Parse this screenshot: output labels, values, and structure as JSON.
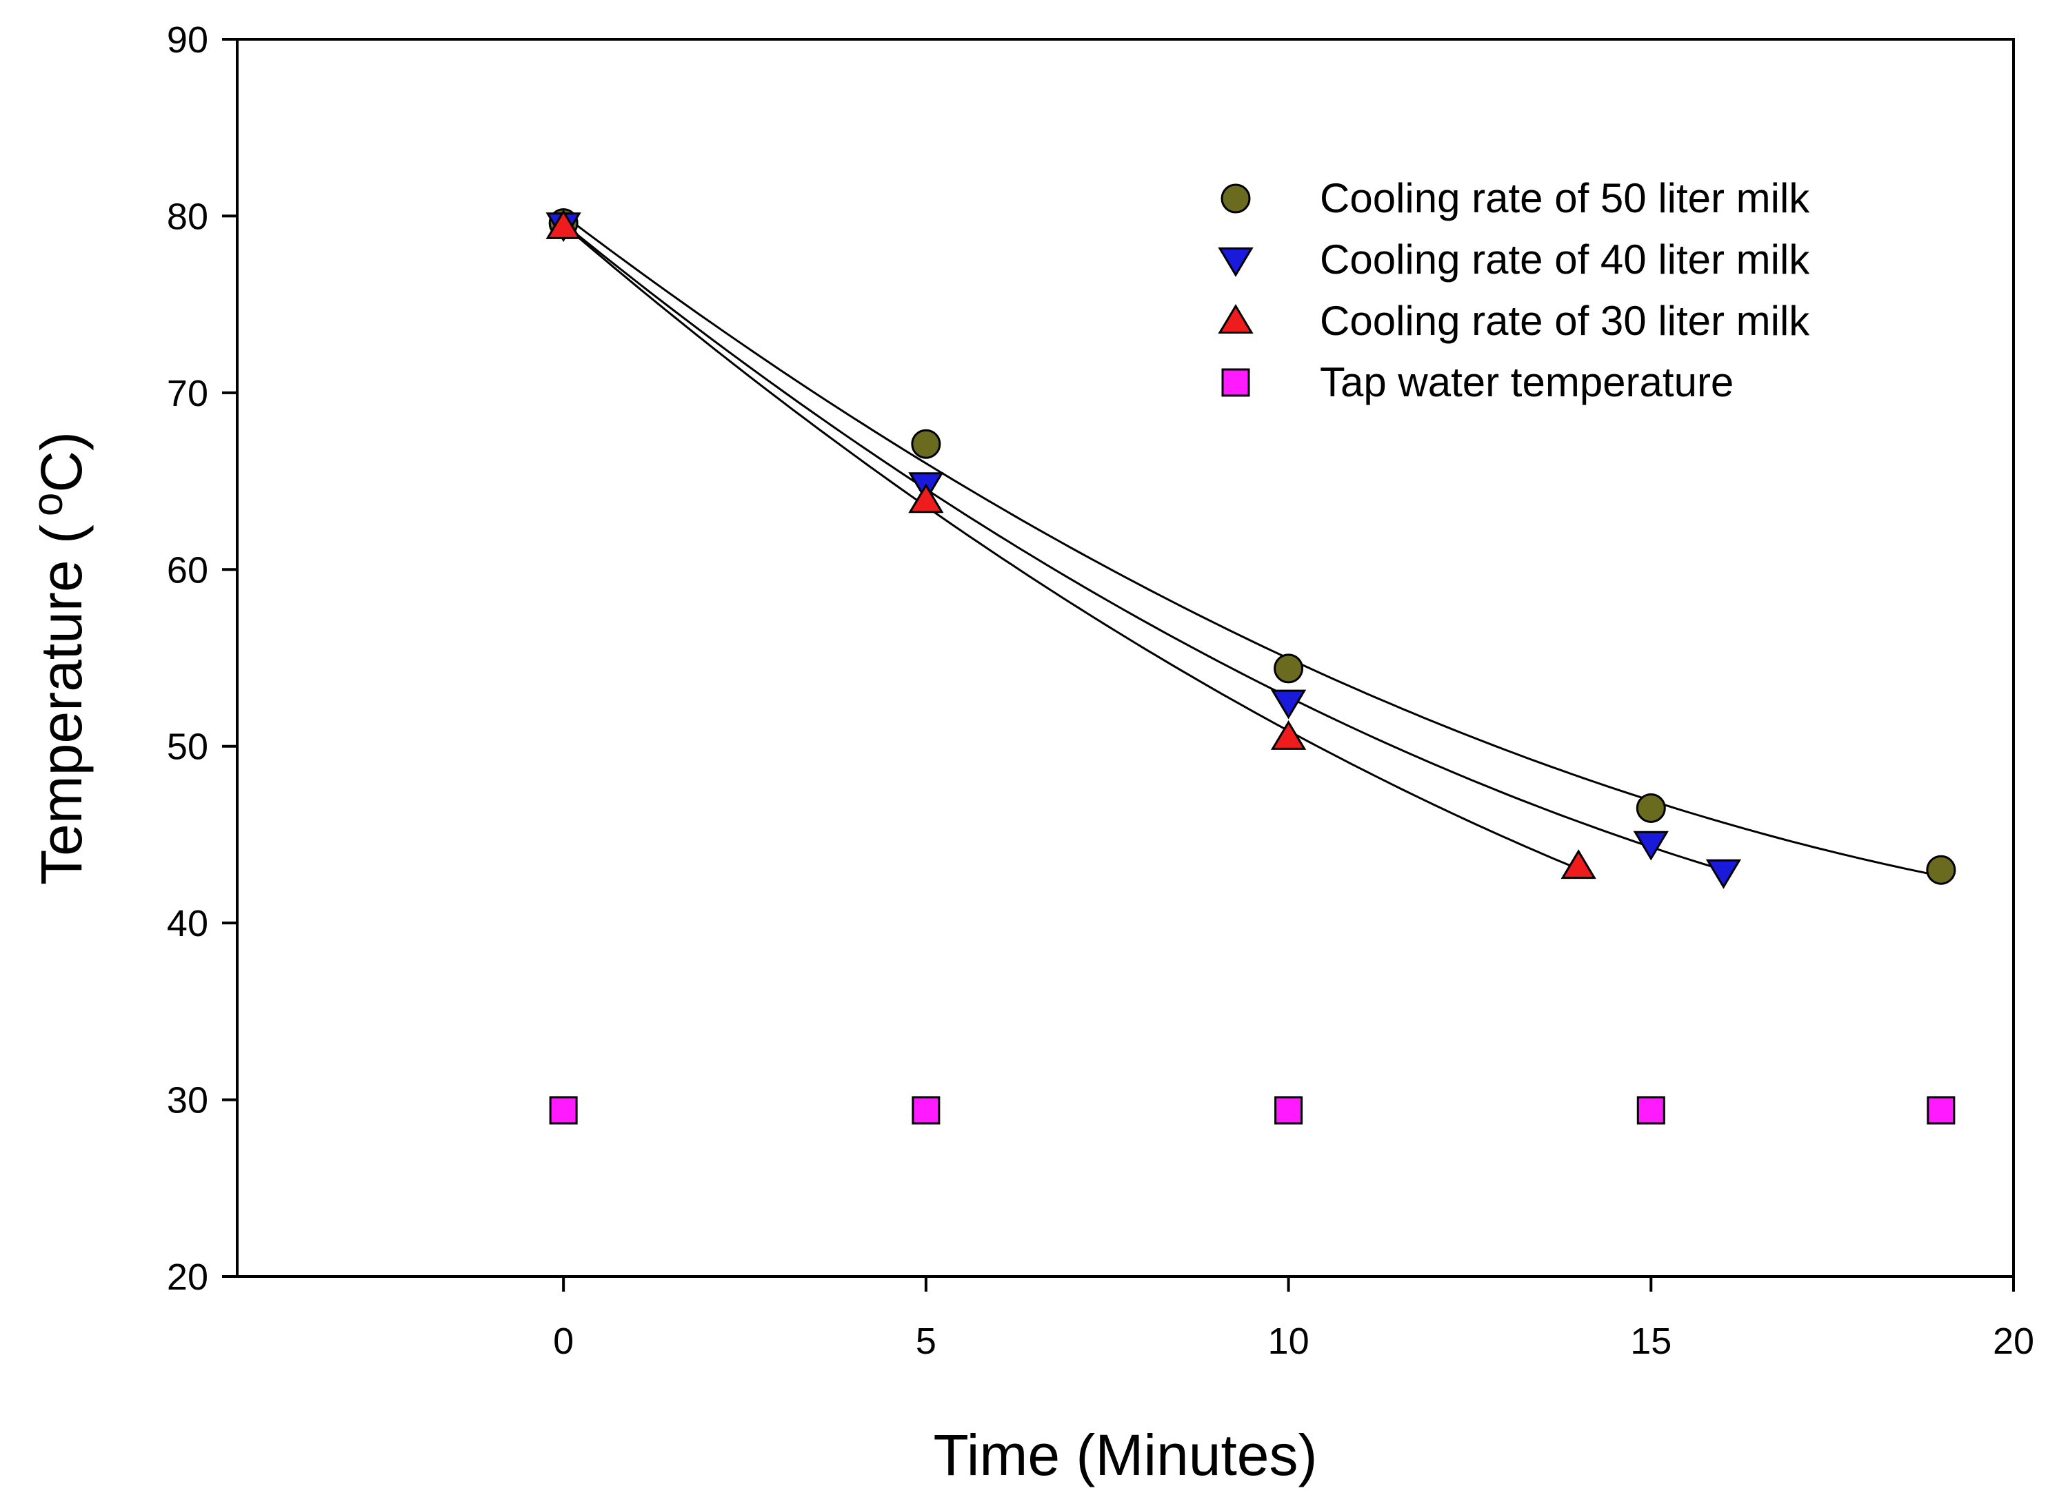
{
  "chart_data": {
    "type": "scatter",
    "title": "",
    "xlabel": "Time (Minutes)",
    "ylabel_main": "Temperature (",
    "ylabel_super": "o",
    "ylabel_unit": "C)",
    "xlim": [
      -4.5,
      20
    ],
    "ylim": [
      20,
      90
    ],
    "xticks": [
      0,
      5,
      10,
      15,
      20
    ],
    "yticks": [
      20,
      30,
      40,
      50,
      60,
      70,
      80,
      90
    ],
    "legend_position": "top-right",
    "series": [
      {
        "name": "Cooling rate of 50 liter milk",
        "marker": "circle",
        "color": "#6b6b1f",
        "x": [
          0,
          5,
          10,
          15,
          19
        ],
        "y": [
          79.6,
          67.1,
          54.4,
          46.5,
          43.0
        ],
        "fit_curve": true
      },
      {
        "name": "Cooling rate of 40 liter milk",
        "marker": "triangle-down",
        "color": "#1a1adb",
        "x": [
          0,
          5,
          10,
          15,
          16
        ],
        "y": [
          79.5,
          64.8,
          52.5,
          44.5,
          42.9
        ],
        "fit_curve": true
      },
      {
        "name": "Cooling rate of 30 liter milk",
        "marker": "triangle-up",
        "color": "#ee1c1c",
        "x": [
          0,
          5,
          10,
          14
        ],
        "y": [
          79.4,
          63.9,
          50.5,
          43.2
        ],
        "fit_curve": true
      },
      {
        "name": "Tap water temperature",
        "marker": "square",
        "color": "#ff1aff",
        "x": [
          0,
          5,
          10,
          15,
          19
        ],
        "y": [
          29.4,
          29.4,
          29.4,
          29.4,
          29.4
        ],
        "fit_curve": false
      }
    ]
  }
}
